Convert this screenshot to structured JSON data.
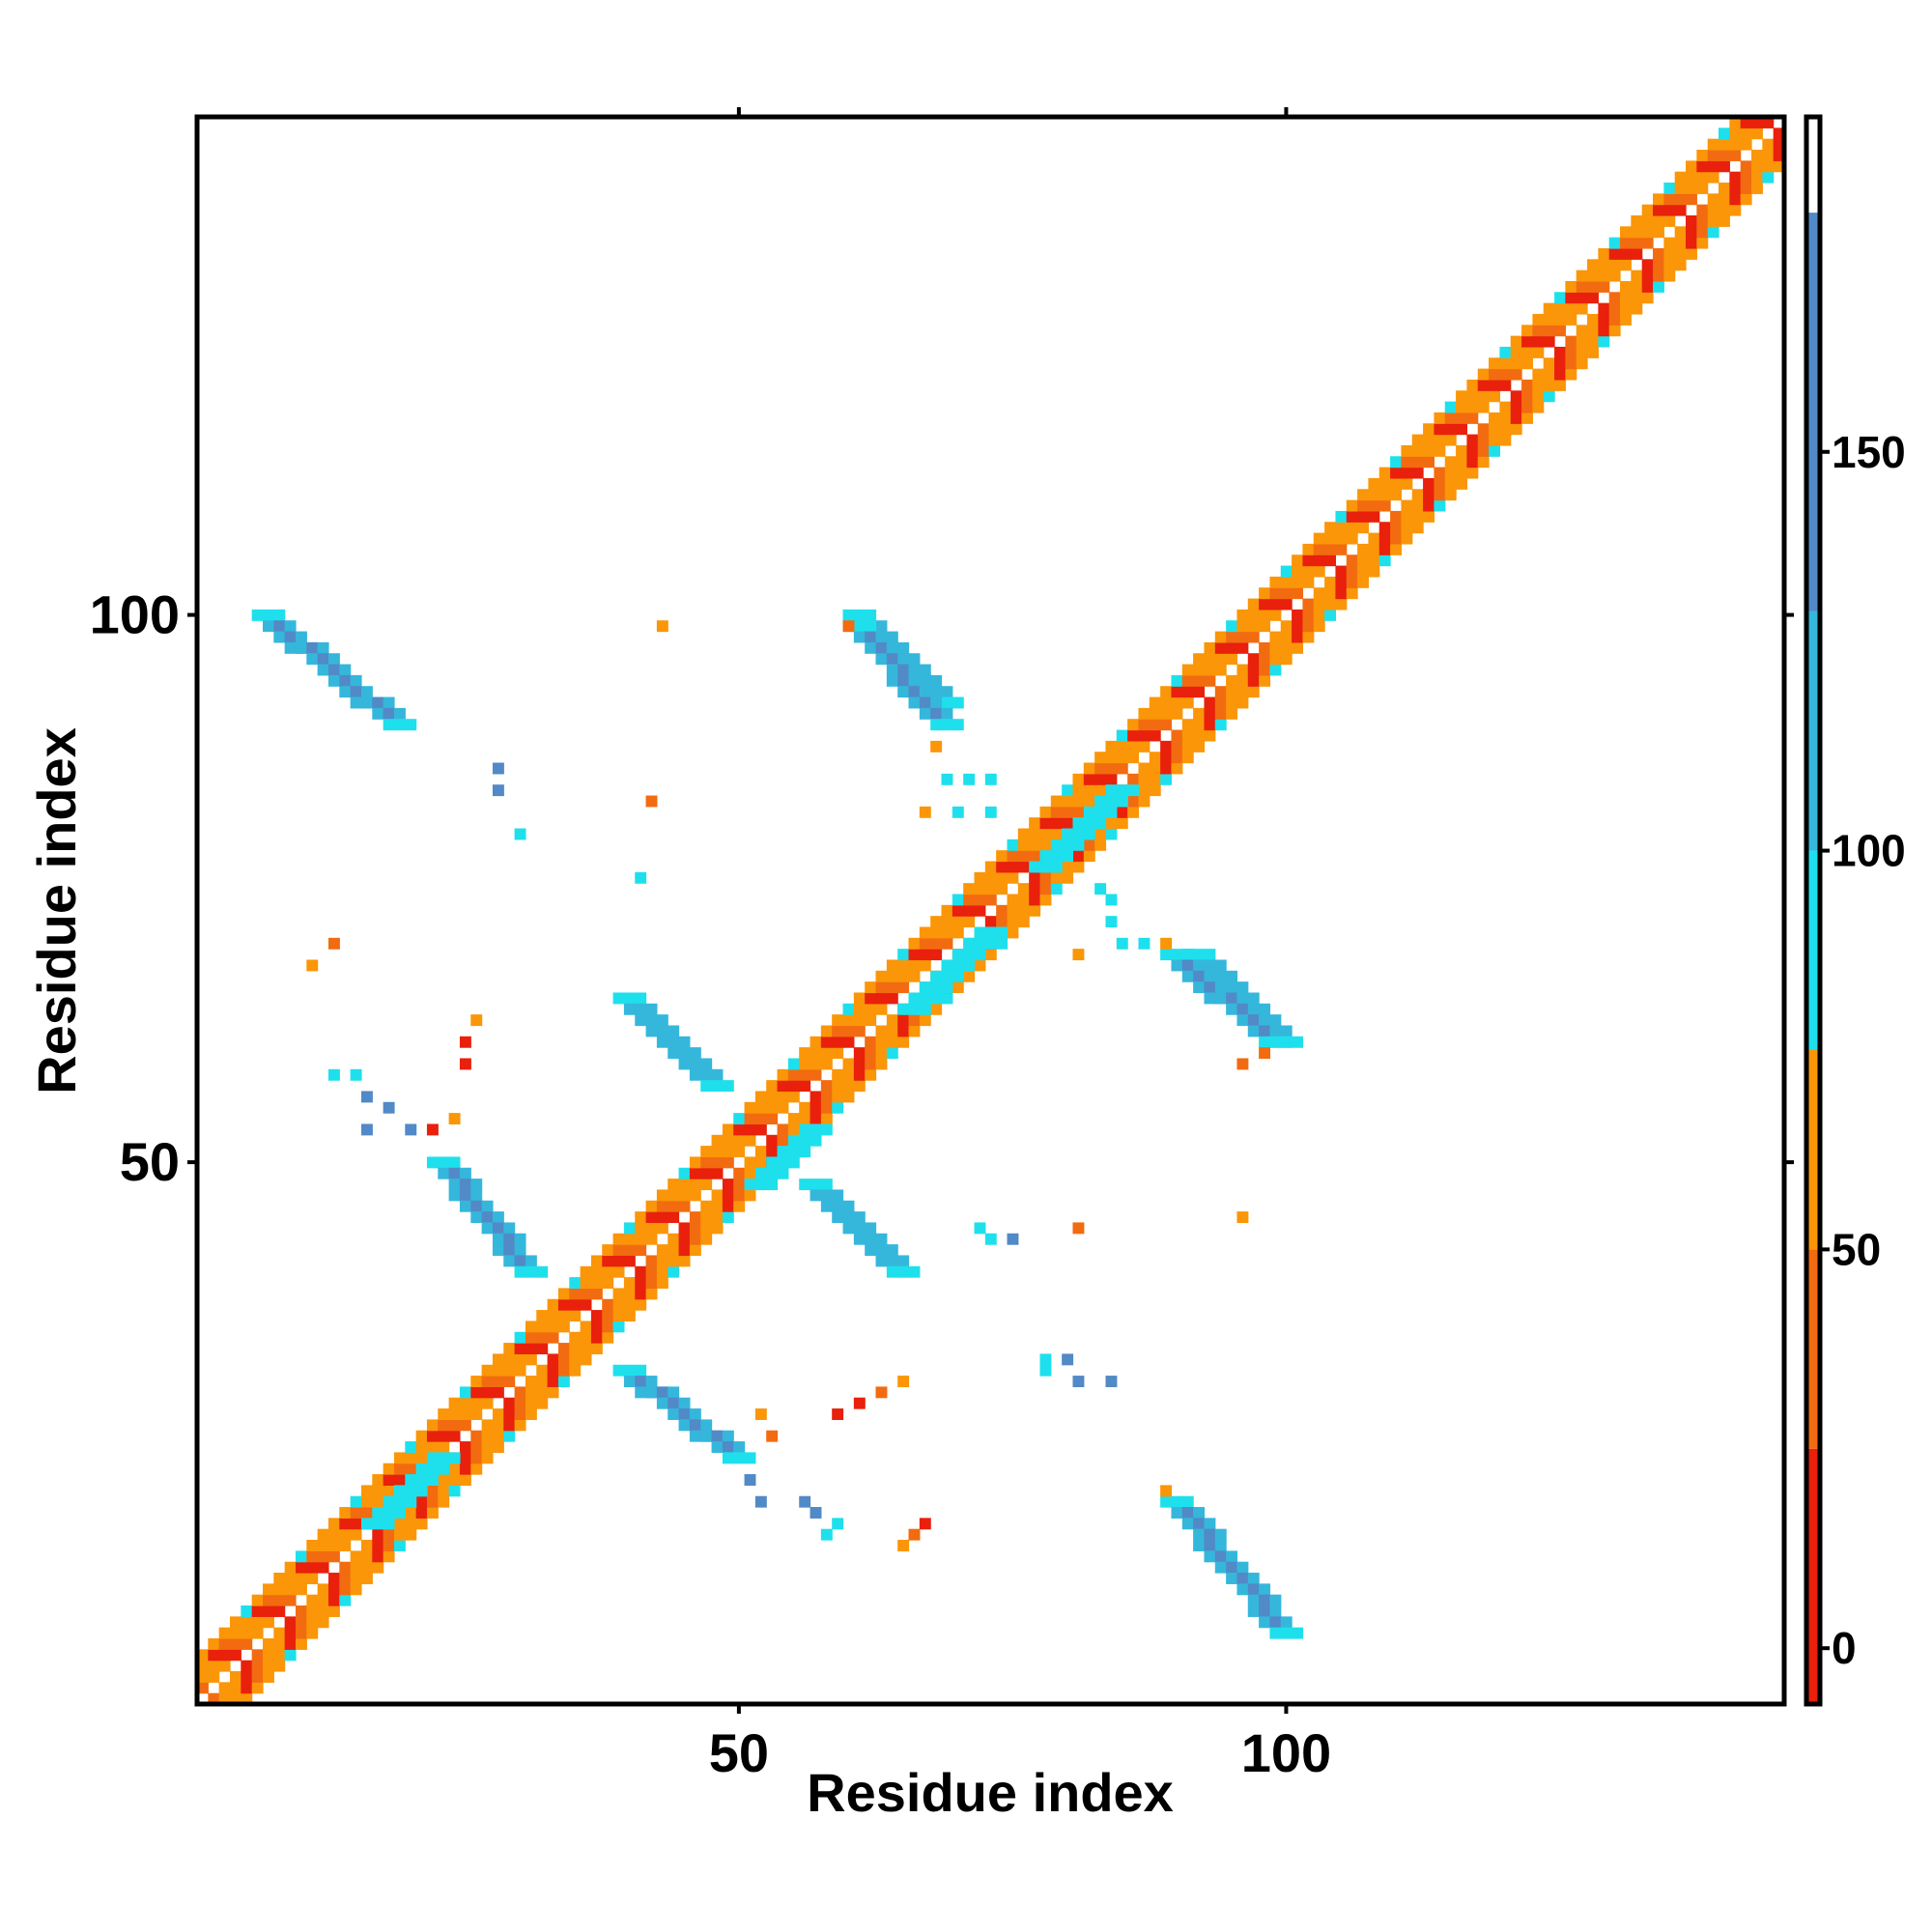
{
  "chart_data": {
    "type": "heatmap",
    "title": "",
    "xlabel": "Residue index",
    "ylabel": "Residue index",
    "xlim": [
      1,
      145
    ],
    "ylim": [
      1,
      145
    ],
    "x_ticks": [
      50,
      100
    ],
    "y_ticks": [
      50,
      100
    ],
    "grid": false,
    "colorbar": {
      "ticks": [
        0,
        50,
        100,
        150
      ],
      "range": [
        -7,
        192
      ],
      "bands": [
        {
          "from": -7,
          "to": 25,
          "color": "#e8200c"
        },
        {
          "from": 25,
          "to": 50,
          "color": "#f26b10"
        },
        {
          "from": 50,
          "to": 75,
          "color": "#fa9608"
        },
        {
          "from": 75,
          "to": 100,
          "color": "#1ee0ec"
        },
        {
          "from": 100,
          "to": 130,
          "color": "#35b7dc"
        },
        {
          "from": 130,
          "to": 180,
          "color": "#5289c7"
        },
        {
          "from": 180,
          "to": 192,
          "color": "#ffffff"
        }
      ]
    },
    "colors": {
      "red": "#e8200c",
      "dark_orange": "#f26b10",
      "orange": "#fa9608",
      "cyan": "#1ee0ec",
      "light_blue": "#35b7dc",
      "steel_blue": "#5289c7"
    },
    "diagonal": {
      "start": 1,
      "end": 145,
      "band_pattern": [
        "orange",
        "red",
        "dark_orange",
        "orange"
      ]
    },
    "regions": [
      {
        "name": "sheet-a",
        "x": [
          7,
          19
        ],
        "y": [
          90,
          100
        ],
        "value": 140
      },
      {
        "name": "sheet-a-mirror",
        "x": [
          90,
          100
        ],
        "y": [
          7,
          19
        ],
        "value": 140
      },
      {
        "name": "sheet-b",
        "x": [
          23,
          31
        ],
        "y": [
          40,
          50
        ],
        "value": 135
      },
      {
        "name": "sheet-b-mirror",
        "x": [
          40,
          50
        ],
        "y": [
          23,
          31
        ],
        "value": 135
      },
      {
        "name": "sheet-c",
        "x": [
          40,
          48
        ],
        "y": [
          57,
          65
        ],
        "value": 125
      },
      {
        "name": "sheet-c-mirror",
        "x": [
          57,
          65
        ],
        "y": [
          40,
          48
        ],
        "value": 125
      },
      {
        "name": "sheet-d",
        "x": [
          61,
          69
        ],
        "y": [
          92,
          100
        ],
        "value": 125
      },
      {
        "name": "sheet-d-mirror",
        "x": [
          92,
          100
        ],
        "y": [
          61,
          69
        ],
        "value": 125
      },
      {
        "name": "sheet-e",
        "x": [
          90,
          99
        ],
        "y": [
          61,
          69
        ],
        "value": 130
      },
      {
        "name": "sheet-e-mirror",
        "x": [
          61,
          69
        ],
        "y": [
          90,
          99
        ],
        "value": 130
      },
      {
        "name": "helix-cluster",
        "x": [
          52,
          57
        ],
        "y": [
          48,
          53
        ],
        "value": 90
      },
      {
        "name": "helix-cluster-2",
        "x": [
          66,
          73
        ],
        "y": [
          64,
          71
        ],
        "value": 95
      },
      {
        "name": "helix-cluster-3",
        "x": [
          78,
          85
        ],
        "y": [
          77,
          84
        ],
        "value": 90
      },
      {
        "name": "helix-cluster-4",
        "x": [
          17,
          23
        ],
        "y": [
          17,
          23
        ],
        "value": 90
      }
    ],
    "scatter_points": [
      {
        "x": 43,
        "y": 99,
        "value": 60
      },
      {
        "x": 60,
        "y": 99,
        "value": 40
      },
      {
        "x": 28,
        "y": 86,
        "value": 140
      },
      {
        "x": 28,
        "y": 84,
        "value": 140
      },
      {
        "x": 30,
        "y": 80,
        "value": 90
      },
      {
        "x": 41,
        "y": 76,
        "value": 90
      },
      {
        "x": 42,
        "y": 83,
        "value": 40
      },
      {
        "x": 11,
        "y": 68,
        "value": 60
      },
      {
        "x": 13,
        "y": 70,
        "value": 40
      },
      {
        "x": 26,
        "y": 63,
        "value": 60
      },
      {
        "x": 25,
        "y": 61,
        "value": 10
      },
      {
        "x": 25,
        "y": 59,
        "value": 10
      },
      {
        "x": 13,
        "y": 58,
        "value": 90
      },
      {
        "x": 15,
        "y": 58,
        "value": 90
      },
      {
        "x": 16,
        "y": 56,
        "value": 140
      },
      {
        "x": 18,
        "y": 55,
        "value": 140
      },
      {
        "x": 16,
        "y": 53,
        "value": 140
      },
      {
        "x": 20,
        "y": 53,
        "value": 140
      },
      {
        "x": 22,
        "y": 53,
        "value": 20
      },
      {
        "x": 24,
        "y": 54,
        "value": 60
      },
      {
        "x": 68,
        "y": 88,
        "value": 60
      },
      {
        "x": 69,
        "y": 85,
        "value": 90
      },
      {
        "x": 71,
        "y": 85,
        "value": 90
      },
      {
        "x": 73,
        "y": 85,
        "value": 90
      },
      {
        "x": 67,
        "y": 82,
        "value": 60
      },
      {
        "x": 70,
        "y": 82,
        "value": 90
      },
      {
        "x": 73,
        "y": 82,
        "value": 90
      },
      {
        "x": 83,
        "y": 75,
        "value": 90
      },
      {
        "x": 84,
        "y": 74,
        "value": 90
      },
      {
        "x": 84,
        "y": 72,
        "value": 90
      },
      {
        "x": 85,
        "y": 70,
        "value": 90
      },
      {
        "x": 87,
        "y": 70,
        "value": 90
      },
      {
        "x": 81,
        "y": 69,
        "value": 60
      },
      {
        "x": 89,
        "y": 70,
        "value": 60
      },
      {
        "x": 96,
        "y": 59,
        "value": 40
      },
      {
        "x": 98,
        "y": 60,
        "value": 40
      },
      {
        "x": 96,
        "y": 45,
        "value": 60
      },
      {
        "x": 81,
        "y": 44,
        "value": 40
      },
      {
        "x": 73,
        "y": 43,
        "value": 90
      },
      {
        "x": 75,
        "y": 43,
        "value": 140
      },
      {
        "x": 72,
        "y": 44,
        "value": 90
      },
      {
        "x": 78,
        "y": 32,
        "value": 90
      },
      {
        "x": 78,
        "y": 31,
        "value": 90
      },
      {
        "x": 80,
        "y": 32,
        "value": 140
      },
      {
        "x": 81,
        "y": 30,
        "value": 140
      },
      {
        "x": 84,
        "y": 30,
        "value": 140
      },
      {
        "x": 59,
        "y": 27,
        "value": 10
      },
      {
        "x": 61,
        "y": 28,
        "value": 10
      },
      {
        "x": 63,
        "y": 29,
        "value": 40
      },
      {
        "x": 65,
        "y": 30,
        "value": 60
      },
      {
        "x": 52,
        "y": 27,
        "value": 60
      },
      {
        "x": 53,
        "y": 25,
        "value": 40
      },
      {
        "x": 51,
        "y": 21,
        "value": 140
      },
      {
        "x": 52,
        "y": 19,
        "value": 140
      },
      {
        "x": 56,
        "y": 19,
        "value": 140
      },
      {
        "x": 57,
        "y": 18,
        "value": 140
      },
      {
        "x": 59,
        "y": 17,
        "value": 90
      },
      {
        "x": 58,
        "y": 16,
        "value": 90
      },
      {
        "x": 65,
        "y": 15,
        "value": 60
      },
      {
        "x": 67,
        "y": 17,
        "value": 10
      },
      {
        "x": 66,
        "y": 16,
        "value": 40
      },
      {
        "x": 89,
        "y": 20,
        "value": 60
      }
    ]
  }
}
